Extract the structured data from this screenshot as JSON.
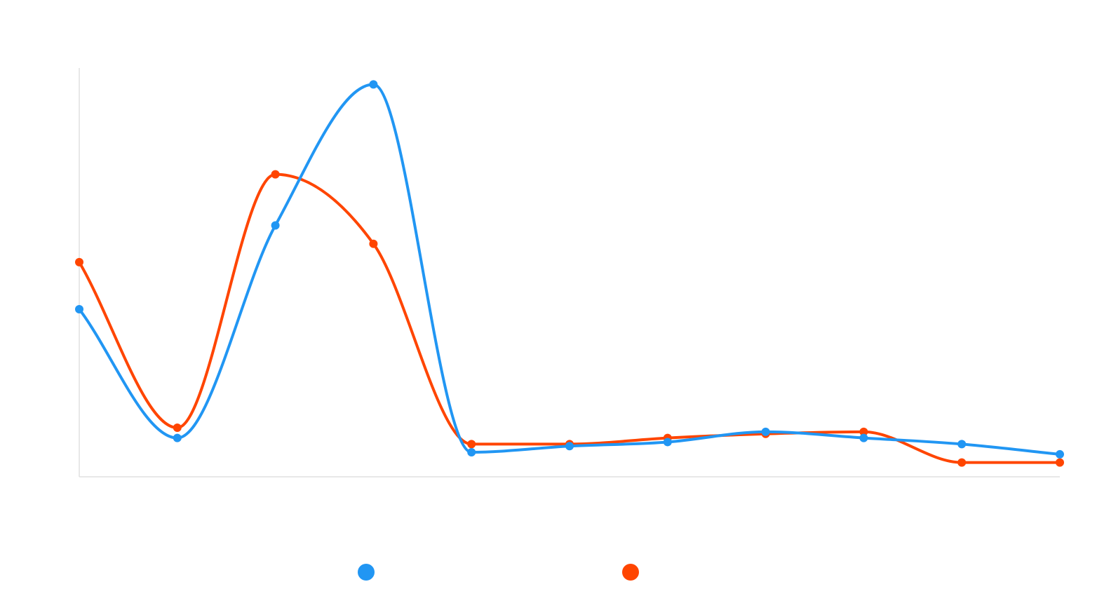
{
  "chart_data": {
    "type": "line",
    "smooth": true,
    "x": [
      1,
      2,
      3,
      4,
      5,
      6,
      7,
      8,
      9,
      10,
      11
    ],
    "series": [
      {
        "color": "#2196F3",
        "values": [
          41.0,
          9.5,
          61.5,
          96.0,
          6.0,
          7.5,
          8.5,
          11.0,
          9.5,
          8.0,
          5.5
        ]
      },
      {
        "color": "#FF4500",
        "values": [
          52.5,
          12.0,
          74.0,
          57.0,
          8.0,
          8.0,
          9.5,
          10.5,
          11.0,
          3.5,
          3.5
        ]
      }
    ],
    "ylim": [
      0,
      100
    ],
    "xlabel": "",
    "ylabel": "",
    "grid": false,
    "legend": "bottom"
  }
}
